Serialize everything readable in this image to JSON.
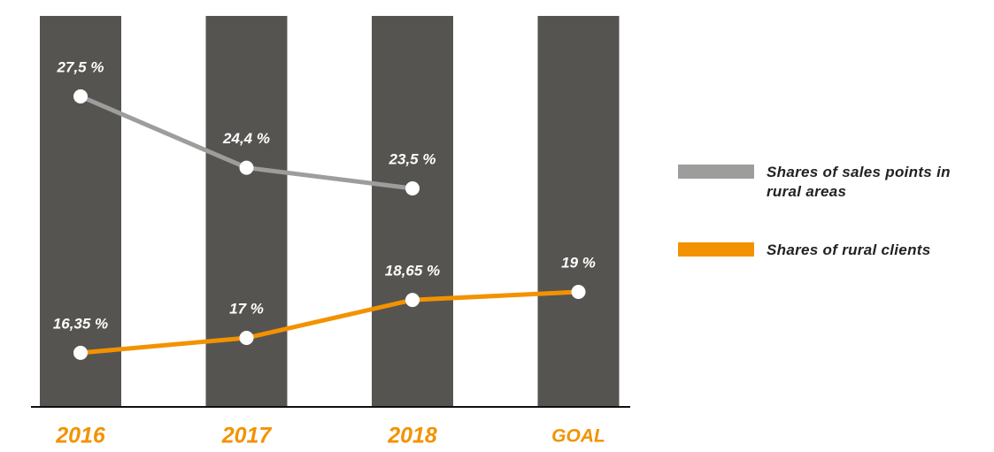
{
  "chart_data": {
    "type": "line",
    "categories": [
      "2016",
      "2017",
      "2018",
      "GOAL"
    ],
    "series": [
      {
        "name": "Shares of sales points in rural areas",
        "color": "#9d9d9c",
        "values": [
          27.5,
          24.4,
          23.5,
          null
        ],
        "value_labels": [
          "27,5 %",
          "24,4 %",
          "23,5 %",
          null
        ]
      },
      {
        "name": "Shares of rural clients",
        "color": "#f39200",
        "values": [
          16.35,
          17,
          18.65,
          19
        ],
        "value_labels": [
          "16,35 %",
          "17 %",
          "18,65 %",
          "19 %"
        ]
      }
    ],
    "ylim": [
      14,
      31
    ],
    "column_color": "#555451",
    "category_color": "#f39200",
    "legend": "right"
  }
}
